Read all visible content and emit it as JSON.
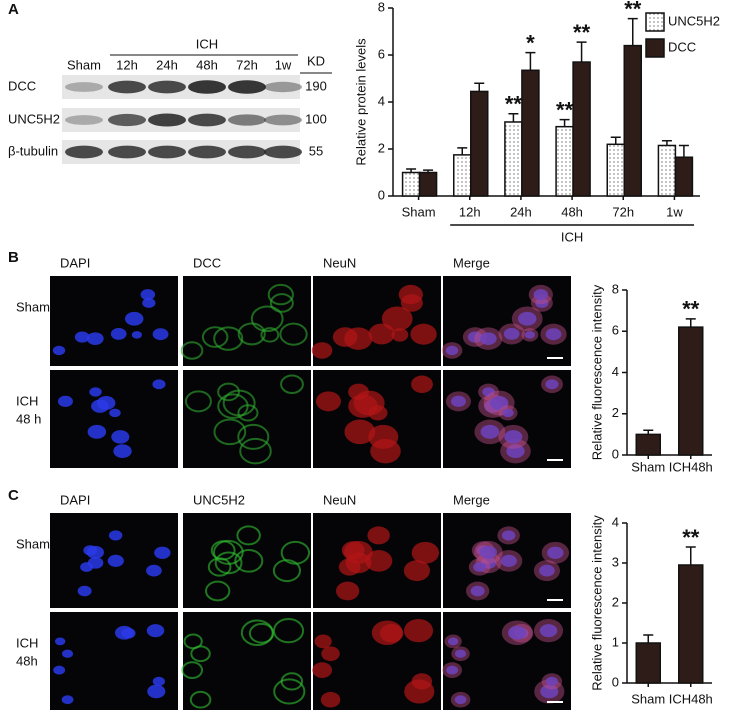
{
  "panels": {
    "a": "A",
    "b": "B",
    "c": "C"
  },
  "blot": {
    "sham": "Sham",
    "group": "ICH",
    "lanes": [
      "12h",
      "24h",
      "48h",
      "72h",
      "1w"
    ],
    "unit": "KD",
    "rows": [
      {
        "name": "DCC",
        "kd": 190
      },
      {
        "name": "UNC5H2",
        "kd": 100
      },
      {
        "name": "β-tubulin",
        "kd": 55
      }
    ]
  },
  "micro_b": {
    "columns": [
      "DAPI",
      "DCC",
      "NeuN",
      "Merge"
    ],
    "rows": [
      [
        "Sham"
      ],
      [
        "ICH",
        "48 h"
      ]
    ]
  },
  "micro_c": {
    "columns": [
      "DAPI",
      "UNC5H2",
      "NeuN",
      "Merge"
    ],
    "rows": [
      [
        "Sham"
      ],
      [
        "ICH",
        "48h"
      ]
    ]
  },
  "chart_data": [
    {
      "type": "bar",
      "ylabel": "Relative protein levels",
      "categories": [
        "Sham",
        "12h",
        "24h",
        "48h",
        "72h",
        "1w"
      ],
      "group_label": "ICH",
      "series": [
        {
          "name": "UNC5H2",
          "color": "#ffffff",
          "pattern": "dots",
          "values": [
            1.0,
            1.75,
            3.15,
            2.95,
            2.2,
            2.15
          ],
          "errors": [
            0.15,
            0.3,
            0.35,
            0.3,
            0.3,
            0.2
          ],
          "stars": [
            null,
            null,
            "**",
            "**",
            null,
            null
          ]
        },
        {
          "name": "DCC",
          "color": "#2e1c19",
          "values": [
            1.0,
            4.45,
            5.35,
            5.7,
            6.4,
            1.65
          ],
          "errors": [
            0.1,
            0.35,
            0.75,
            0.85,
            1.15,
            0.5
          ],
          "stars": [
            null,
            null,
            "*",
            "**",
            "**",
            null
          ]
        }
      ],
      "ylim": [
        0,
        8
      ],
      "yticks": [
        0,
        2,
        4,
        6,
        8
      ],
      "legend": "top-right"
    },
    {
      "type": "bar",
      "ylabel": "Relative fluorescence intensity",
      "categories": [
        "Sham",
        "ICH48h"
      ],
      "values": [
        1.0,
        6.2
      ],
      "errors": [
        0.2,
        0.4
      ],
      "stars": [
        null,
        "**"
      ],
      "color": "#2e1c19",
      "ylim": [
        0,
        8
      ],
      "yticks": [
        0,
        2,
        4,
        6,
        8
      ]
    },
    {
      "type": "bar",
      "ylabel": "Relative fluorescence intensity",
      "categories": [
        "Sham",
        "ICH48h"
      ],
      "values": [
        1.0,
        2.95
      ],
      "errors": [
        0.2,
        0.45
      ],
      "stars": [
        null,
        "**"
      ],
      "color": "#2e1c19",
      "ylim": [
        0,
        4
      ],
      "yticks": [
        0,
        1,
        2,
        3,
        4
      ]
    }
  ]
}
